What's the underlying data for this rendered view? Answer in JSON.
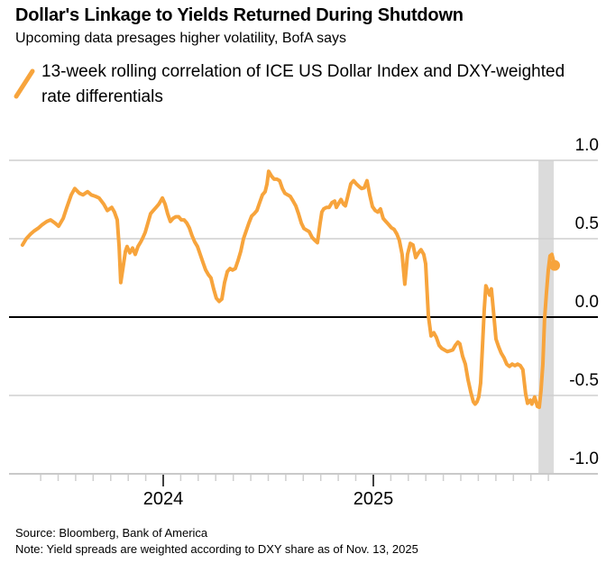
{
  "header": {
    "title": "Dollar's Linkage to Yields Returned During Shutdown",
    "subtitle": "Upcoming data presages higher volatility, BofA says",
    "legend_label": "13-week rolling correlation of ICE US Dollar Index and DXY-weighted rate differentials"
  },
  "footer": {
    "source": "Source: Bloomberg, Bank of America",
    "note": "Note: Yield spreads are weighted according to DXY share as of Nov. 13, 2025"
  },
  "colors": {
    "series": "#F7A43C",
    "grid": "#CFCFCF",
    "zero_line": "#000000",
    "band": "#DBDBDB",
    "axis": "#C9C9C9",
    "major_tick": "#000000",
    "text": "#000000"
  },
  "chart_data": {
    "type": "line",
    "title": "Dollar's Linkage to Yields Returned During Shutdown",
    "subtitle": "Upcoming data presages higher volatility, BofA says",
    "xlabel": "",
    "ylabel": "",
    "xlim": [
      2023.266,
      2026.069
    ],
    "ylim": [
      -1.0,
      1.0
    ],
    "grid": "horizontal",
    "legend_position": "top-left",
    "yticks": [
      {
        "value": 1.0,
        "label": "1.0"
      },
      {
        "value": 0.5,
        "label": "0.5"
      },
      {
        "value": 0.0,
        "label": "0.0"
      },
      {
        "value": -0.5,
        "label": "-0.5"
      },
      {
        "value": -1.0,
        "label": "-1.0"
      }
    ],
    "xticks_major": [
      {
        "value": 2024.0,
        "label": "2024"
      },
      {
        "value": 2025.0,
        "label": "2025"
      }
    ],
    "xticks_minor_months": [
      {
        "year": 2023,
        "from": 6,
        "to": 12
      },
      {
        "year": 2024,
        "from": 2,
        "to": 12
      },
      {
        "year": 2025,
        "from": 2,
        "to": 11
      }
    ],
    "highlight_band": {
      "from": 2025.786,
      "to": 2025.859
    },
    "series": [
      {
        "name": "13-week rolling correlation of ICE US Dollar Index and DXY-weighted rate differentials",
        "color": "#F7A43C",
        "end_marker": true,
        "points": [
          [
            2023.33,
            0.46
          ],
          [
            2023.348,
            0.5
          ],
          [
            2023.369,
            0.53
          ],
          [
            2023.386,
            0.55
          ],
          [
            2023.408,
            0.57
          ],
          [
            2023.425,
            0.59
          ],
          [
            2023.446,
            0.61
          ],
          [
            2023.464,
            0.62
          ],
          [
            2023.485,
            0.6
          ],
          [
            2023.502,
            0.58
          ],
          [
            2023.524,
            0.63
          ],
          [
            2023.541,
            0.7
          ],
          [
            2023.562,
            0.78
          ],
          [
            2023.579,
            0.82
          ],
          [
            2023.601,
            0.79
          ],
          [
            2023.618,
            0.78
          ],
          [
            2023.64,
            0.8
          ],
          [
            2023.657,
            0.78
          ],
          [
            2023.678,
            0.77
          ],
          [
            2023.695,
            0.76
          ],
          [
            2023.717,
            0.72
          ],
          [
            2023.734,
            0.68
          ],
          [
            2023.755,
            0.7
          ],
          [
            2023.768,
            0.67
          ],
          [
            2023.781,
            0.62
          ],
          [
            2023.79,
            0.45
          ],
          [
            2023.798,
            0.22
          ],
          [
            2023.807,
            0.3
          ],
          [
            2023.82,
            0.42
          ],
          [
            2023.828,
            0.45
          ],
          [
            2023.841,
            0.41
          ],
          [
            2023.854,
            0.44
          ],
          [
            2023.867,
            0.4
          ],
          [
            2023.88,
            0.45
          ],
          [
            2023.893,
            0.48
          ],
          [
            2023.901,
            0.5
          ],
          [
            2023.914,
            0.54
          ],
          [
            2023.927,
            0.6
          ],
          [
            2023.94,
            0.66
          ],
          [
            2023.953,
            0.68
          ],
          [
            2023.966,
            0.7
          ],
          [
            2023.979,
            0.72
          ],
          [
            2023.996,
            0.76
          ],
          [
            2024.009,
            0.72
          ],
          [
            2024.021,
            0.66
          ],
          [
            2024.034,
            0.61
          ],
          [
            2024.047,
            0.63
          ],
          [
            2024.06,
            0.64
          ],
          [
            2024.073,
            0.64
          ],
          [
            2024.086,
            0.62
          ],
          [
            2024.099,
            0.62
          ],
          [
            2024.112,
            0.6
          ],
          [
            2024.124,
            0.57
          ],
          [
            2024.137,
            0.52
          ],
          [
            2024.15,
            0.48
          ],
          [
            2024.163,
            0.45
          ],
          [
            2024.176,
            0.4
          ],
          [
            2024.189,
            0.35
          ],
          [
            2024.202,
            0.3
          ],
          [
            2024.215,
            0.27
          ],
          [
            2024.227,
            0.25
          ],
          [
            2024.24,
            0.18
          ],
          [
            2024.253,
            0.12
          ],
          [
            2024.266,
            0.1
          ],
          [
            2024.279,
            0.115
          ],
          [
            2024.292,
            0.22
          ],
          [
            2024.305,
            0.29
          ],
          [
            2024.318,
            0.31
          ],
          [
            2024.33,
            0.3
          ],
          [
            2024.343,
            0.31
          ],
          [
            2024.356,
            0.36
          ],
          [
            2024.369,
            0.42
          ],
          [
            2024.382,
            0.5
          ],
          [
            2024.395,
            0.55
          ],
          [
            2024.408,
            0.6
          ],
          [
            2024.421,
            0.645
          ],
          [
            2024.433,
            0.66
          ],
          [
            2024.446,
            0.68
          ],
          [
            2024.459,
            0.73
          ],
          [
            2024.472,
            0.78
          ],
          [
            2024.485,
            0.8
          ],
          [
            2024.494,
            0.85
          ],
          [
            2024.502,
            0.93
          ],
          [
            2024.515,
            0.9
          ],
          [
            2024.528,
            0.88
          ],
          [
            2024.541,
            0.88
          ],
          [
            2024.554,
            0.87
          ],
          [
            2024.567,
            0.82
          ],
          [
            2024.579,
            0.79
          ],
          [
            2024.592,
            0.78
          ],
          [
            2024.605,
            0.77
          ],
          [
            2024.618,
            0.74
          ],
          [
            2024.631,
            0.71
          ],
          [
            2024.644,
            0.66
          ],
          [
            2024.657,
            0.6
          ],
          [
            2024.67,
            0.565
          ],
          [
            2024.682,
            0.555
          ],
          [
            2024.695,
            0.545
          ],
          [
            2024.708,
            0.51
          ],
          [
            2024.721,
            0.49
          ],
          [
            2024.734,
            0.475
          ],
          [
            2024.747,
            0.6
          ],
          [
            2024.755,
            0.67
          ],
          [
            2024.764,
            0.69
          ],
          [
            2024.777,
            0.7
          ],
          [
            2024.79,
            0.7
          ],
          [
            2024.803,
            0.73
          ],
          [
            2024.816,
            0.74
          ],
          [
            2024.824,
            0.7
          ],
          [
            2024.837,
            0.73
          ],
          [
            2024.846,
            0.75
          ],
          [
            2024.858,
            0.72
          ],
          [
            2024.867,
            0.71
          ],
          [
            2024.88,
            0.78
          ],
          [
            2024.893,
            0.85
          ],
          [
            2024.906,
            0.87
          ],
          [
            2024.919,
            0.85
          ],
          [
            2024.931,
            0.835
          ],
          [
            2024.944,
            0.82
          ],
          [
            2024.957,
            0.825
          ],
          [
            2024.97,
            0.87
          ],
          [
            2024.983,
            0.78
          ],
          [
            2024.996,
            0.705
          ],
          [
            2025.009,
            0.68
          ],
          [
            2025.021,
            0.67
          ],
          [
            2025.034,
            0.69
          ],
          [
            2025.047,
            0.63
          ],
          [
            2025.06,
            0.61
          ],
          [
            2025.073,
            0.59
          ],
          [
            2025.086,
            0.57
          ],
          [
            2025.099,
            0.56
          ],
          [
            2025.112,
            0.53
          ],
          [
            2025.124,
            0.49
          ],
          [
            2025.137,
            0.4
          ],
          [
            2025.15,
            0.21
          ],
          [
            2025.163,
            0.4
          ],
          [
            2025.176,
            0.47
          ],
          [
            2025.189,
            0.46
          ],
          [
            2025.202,
            0.38
          ],
          [
            2025.215,
            0.41
          ],
          [
            2025.227,
            0.43
          ],
          [
            2025.24,
            0.4
          ],
          [
            2025.249,
            0.34
          ],
          [
            2025.262,
            0.01
          ],
          [
            2025.275,
            -0.12
          ],
          [
            2025.288,
            -0.1
          ],
          [
            2025.3,
            -0.13
          ],
          [
            2025.313,
            -0.18
          ],
          [
            2025.326,
            -0.2
          ],
          [
            2025.339,
            -0.21
          ],
          [
            2025.352,
            -0.22
          ],
          [
            2025.365,
            -0.215
          ],
          [
            2025.378,
            -0.21
          ],
          [
            2025.391,
            -0.18
          ],
          [
            2025.403,
            -0.16
          ],
          [
            2025.412,
            -0.17
          ],
          [
            2025.425,
            -0.25
          ],
          [
            2025.438,
            -0.3
          ],
          [
            2025.451,
            -0.4
          ],
          [
            2025.464,
            -0.48
          ],
          [
            2025.476,
            -0.54
          ],
          [
            2025.485,
            -0.555
          ],
          [
            2025.494,
            -0.54
          ],
          [
            2025.502,
            -0.51
          ],
          [
            2025.511,
            -0.42
          ],
          [
            2025.519,
            -0.2
          ],
          [
            2025.528,
            0.05
          ],
          [
            2025.536,
            0.2
          ],
          [
            2025.545,
            0.17
          ],
          [
            2025.554,
            0.14
          ],
          [
            2025.562,
            0.18
          ],
          [
            2025.571,
            0.05
          ],
          [
            2025.584,
            -0.14
          ],
          [
            2025.597,
            -0.19
          ],
          [
            2025.609,
            -0.23
          ],
          [
            2025.622,
            -0.26
          ],
          [
            2025.635,
            -0.3
          ],
          [
            2025.648,
            -0.315
          ],
          [
            2025.661,
            -0.3
          ],
          [
            2025.674,
            -0.31
          ],
          [
            2025.687,
            -0.3
          ],
          [
            2025.7,
            -0.31
          ],
          [
            2025.712,
            -0.335
          ],
          [
            2025.725,
            -0.49
          ],
          [
            2025.734,
            -0.55
          ],
          [
            2025.747,
            -0.53
          ],
          [
            2025.755,
            -0.555
          ],
          [
            2025.768,
            -0.51
          ],
          [
            2025.781,
            -0.57
          ],
          [
            2025.79,
            -0.575
          ],
          [
            2025.798,
            -0.47
          ],
          [
            2025.807,
            -0.3
          ],
          [
            2025.815,
            -0.02
          ],
          [
            2025.824,
            0.15
          ],
          [
            2025.833,
            0.3
          ],
          [
            2025.841,
            0.39
          ],
          [
            2025.85,
            0.4
          ],
          [
            2025.863,
            0.33
          ]
        ]
      }
    ]
  }
}
